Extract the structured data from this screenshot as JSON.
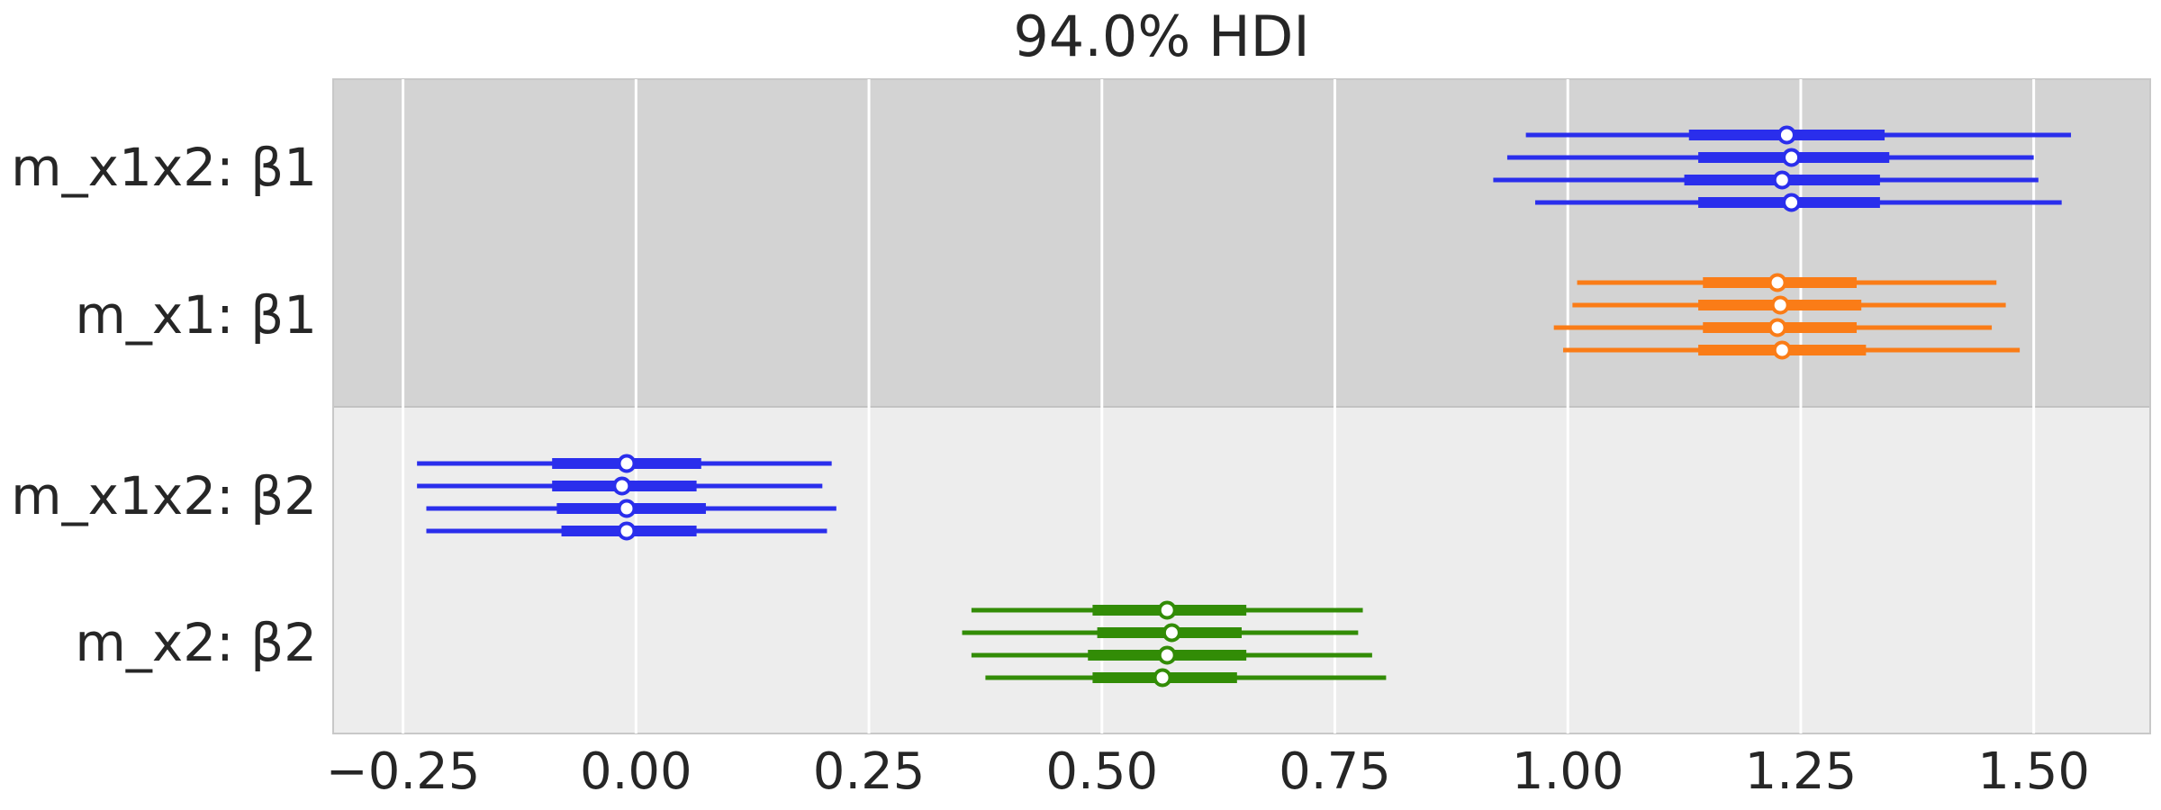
{
  "chart_data": {
    "type": "forest",
    "title": "94.0% HDI",
    "xlabel": "",
    "ylabel": "",
    "xlim": [
      -0.325,
      1.625
    ],
    "x_ticks": [
      {
        "value": -0.25,
        "label": "−0.25"
      },
      {
        "value": 0.0,
        "label": "0.00"
      },
      {
        "value": 0.25,
        "label": "0.25"
      },
      {
        "value": 0.5,
        "label": "0.50"
      },
      {
        "value": 0.75,
        "label": "0.75"
      },
      {
        "value": 1.0,
        "label": "1.00"
      },
      {
        "value": 1.25,
        "label": "1.25"
      },
      {
        "value": 1.5,
        "label": "1.50"
      }
    ],
    "grid": true,
    "colors": {
      "m_x1x2": "#2a2eec",
      "m_x1": "#fa7c17",
      "m_x2": "#328c06",
      "band_dark": "#d3d3d3",
      "band_light": "#ededed",
      "grid": "#ffffff",
      "text": "#262626"
    },
    "groups": [
      {
        "name": "β1",
        "rows": [
          {
            "label": "m_x1x2: β1",
            "model": "m_x1x2",
            "chains": [
              {
                "hdi": [
                  0.955,
                  1.54
                ],
                "iqr": [
                  1.13,
                  1.34
                ],
                "median": 1.235
              },
              {
                "hdi": [
                  0.935,
                  1.5
                ],
                "iqr": [
                  1.14,
                  1.345
                ],
                "median": 1.24
              },
              {
                "hdi": [
                  0.92,
                  1.505
                ],
                "iqr": [
                  1.125,
                  1.335
                ],
                "median": 1.23
              },
              {
                "hdi": [
                  0.965,
                  1.53
                ],
                "iqr": [
                  1.14,
                  1.335
                ],
                "median": 1.24
              }
            ]
          },
          {
            "label": "m_x1: β1",
            "model": "m_x1",
            "chains": [
              {
                "hdi": [
                  1.01,
                  1.46
                ],
                "iqr": [
                  1.145,
                  1.31
                ],
                "median": 1.225
              },
              {
                "hdi": [
                  1.005,
                  1.47
                ],
                "iqr": [
                  1.14,
                  1.315
                ],
                "median": 1.228
              },
              {
                "hdi": [
                  0.985,
                  1.455
                ],
                "iqr": [
                  1.145,
                  1.31
                ],
                "median": 1.225
              },
              {
                "hdi": [
                  0.995,
                  1.485
                ],
                "iqr": [
                  1.14,
                  1.32
                ],
                "median": 1.23
              }
            ]
          }
        ]
      },
      {
        "name": "β2",
        "rows": [
          {
            "label": "m_x1x2: β2",
            "model": "m_x1x2",
            "chains": [
              {
                "hdi": [
                  -0.235,
                  0.21
                ],
                "iqr": [
                  -0.09,
                  0.07
                ],
                "median": -0.01
              },
              {
                "hdi": [
                  -0.235,
                  0.2
                ],
                "iqr": [
                  -0.09,
                  0.065
                ],
                "median": -0.015
              },
              {
                "hdi": [
                  -0.225,
                  0.215
                ],
                "iqr": [
                  -0.085,
                  0.075
                ],
                "median": -0.01
              },
              {
                "hdi": [
                  -0.225,
                  0.205
                ],
                "iqr": [
                  -0.08,
                  0.065
                ],
                "median": -0.01
              }
            ]
          },
          {
            "label": "m_x2: β2",
            "model": "m_x2",
            "chains": [
              {
                "hdi": [
                  0.36,
                  0.78
                ],
                "iqr": [
                  0.49,
                  0.655
                ],
                "median": 0.57
              },
              {
                "hdi": [
                  0.35,
                  0.775
                ],
                "iqr": [
                  0.495,
                  0.65
                ],
                "median": 0.575
              },
              {
                "hdi": [
                  0.36,
                  0.79
                ],
                "iqr": [
                  0.485,
                  0.655
                ],
                "median": 0.57
              },
              {
                "hdi": [
                  0.375,
                  0.805
                ],
                "iqr": [
                  0.49,
                  0.645
                ],
                "median": 0.565
              }
            ]
          }
        ]
      }
    ]
  }
}
